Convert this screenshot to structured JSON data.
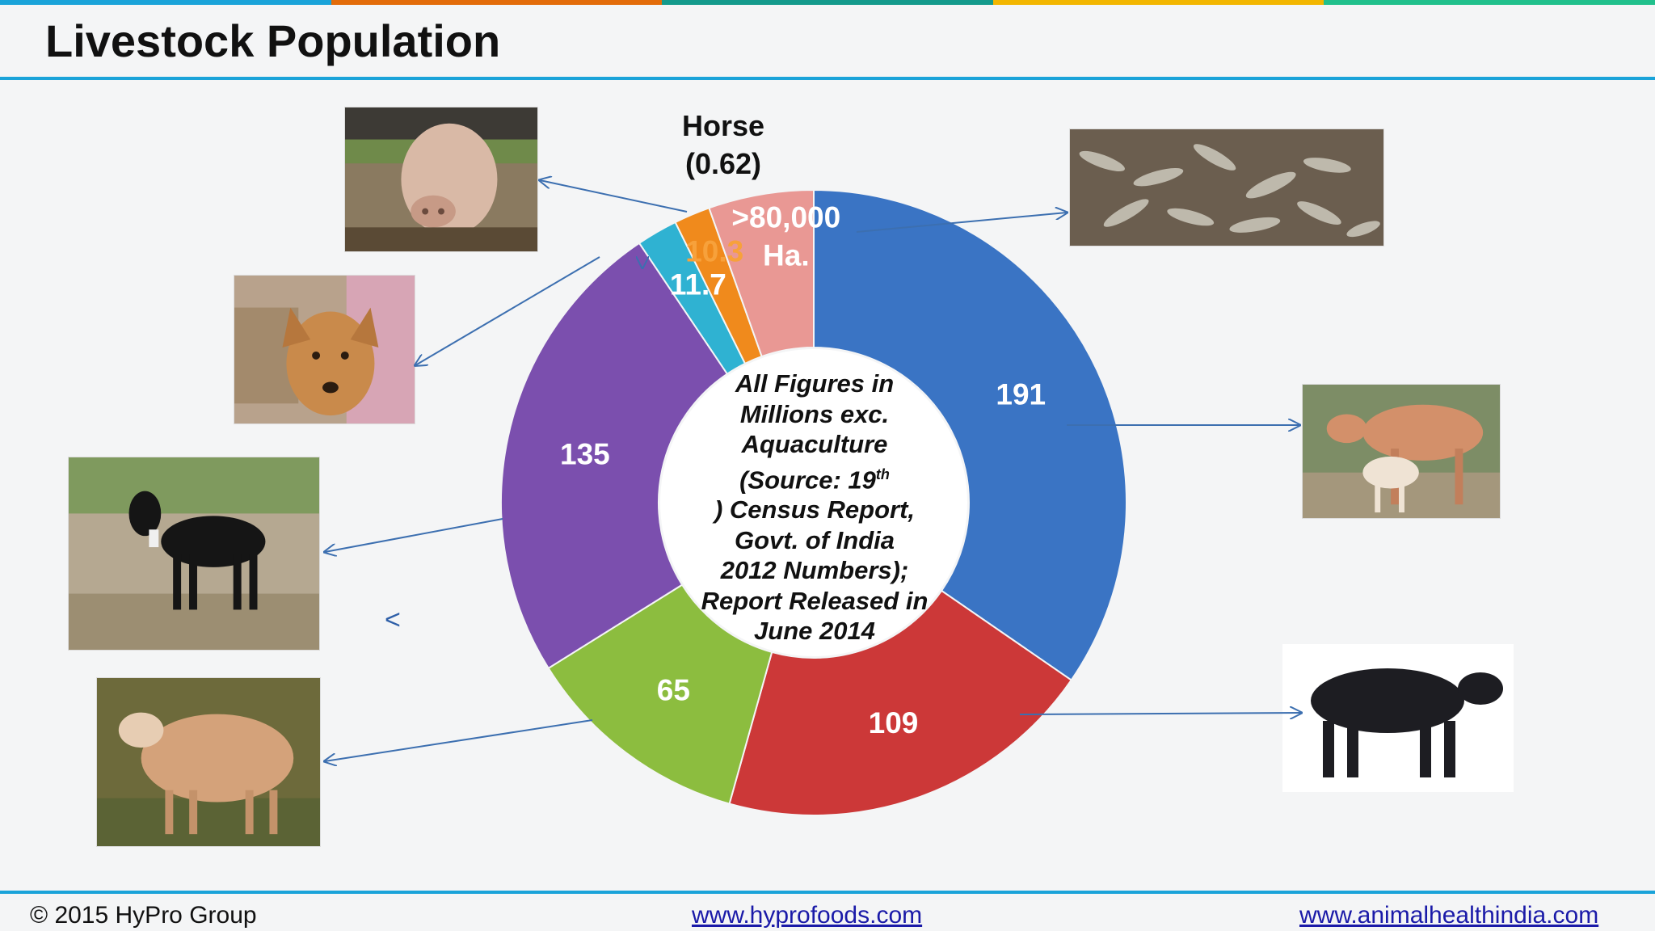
{
  "header": {
    "title": "Livestock Population"
  },
  "topbar_colors": [
    "#1aa3d9",
    "#e36c0a",
    "#149a8c",
    "#f2b600",
    "#21c08c"
  ],
  "chart_data": {
    "type": "donut",
    "title": "",
    "center_note": "All Figures in Millions exc. Aquaculture (Source: 19th Census Report, Govt. of India 2012 Numbers); Report Released in June 2014",
    "center_note_lines": [
      "All Figures in",
      "Millions exc.",
      "Aquaculture",
      "(Source: 19",
      "th",
      ") Census Report,",
      "Govt. of India",
      "2012 Numbers);",
      "Report Released in",
      "June 2014"
    ],
    "slices": [
      {
        "label": "191",
        "value": 191,
        "color": "#3a74c4",
        "label_color": "#ffffff"
      },
      {
        "label": "109",
        "value": 109,
        "color": "#cc3838",
        "label_color": "#ffffff"
      },
      {
        "label": "65",
        "value": 65,
        "color": "#8cbd3f",
        "label_color": "#ffffff"
      },
      {
        "label": "135",
        "value": 135,
        "color": "#7b4fae",
        "label_color": "#ffffff"
      },
      {
        "label": "11.7",
        "value": 11.7,
        "color": "#2fb2d2",
        "label_color": "#ffffff"
      },
      {
        "label": "10.3",
        "value": 10.3,
        "color": "#f08a1c",
        "label_color": "#f7a13b"
      },
      {
        "label": ">80,000 Ha.",
        "value": 30,
        "color": "#e99894",
        "label_color": "#ffffff"
      }
    ],
    "outside_label": {
      "title": "Horse",
      "value": "(0.62)"
    }
  },
  "images": {
    "pig": "pig",
    "dog": "dog",
    "goat": "goat",
    "sheep": "sheep",
    "fish": "fish",
    "cow": "cow with calf",
    "buffalo": "buffalo"
  },
  "stray_mark": "<",
  "footer": {
    "copyright": "© 2015 HyPro Group",
    "link1": "www.hyprofoods.com",
    "link2": "www.animalhealthindia.com"
  }
}
